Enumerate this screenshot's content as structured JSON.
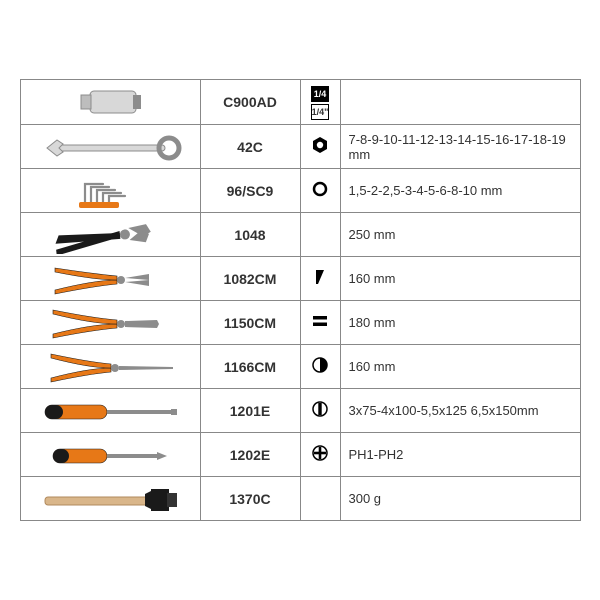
{
  "colors": {
    "border": "#888888",
    "text": "#333333",
    "bg": "#ffffff",
    "orange": "#e77817",
    "black": "#1a1a1a",
    "steel": "#bdbdbd",
    "steel_light": "#d8d8d8",
    "steel_dark": "#8c8c8c",
    "wood": "#d9b68a"
  },
  "rows": [
    {
      "tool": "socket",
      "code": "C900AD",
      "icon_type": "drive",
      "spec": ""
    },
    {
      "tool": "wrench",
      "code": "42C",
      "icon_type": "hexnut",
      "spec": "7-8-9-10-11-12-13-14-15-16-17-18-19 mm"
    },
    {
      "tool": "hexkeys",
      "code": "96/SC9",
      "icon_type": "circle-o",
      "spec": "1,5-2-2,5-3-4-5-6-8-10 mm"
    },
    {
      "tool": "waterpump",
      "code": "1048",
      "icon_type": "",
      "spec": "250 mm"
    },
    {
      "tool": "diagcut",
      "code": "1082CM",
      "icon_type": "diag",
      "spec": "160 mm"
    },
    {
      "tool": "combplier",
      "code": "1150CM",
      "icon_type": "bars",
      "spec": "180 mm"
    },
    {
      "tool": "longnose",
      "code": "1166CM",
      "icon_type": "halfcircle",
      "spec": "160 mm"
    },
    {
      "tool": "flatdriver",
      "code": "1201E",
      "icon_type": "slot",
      "spec": "3x75-4x100-5,5x125 6,5x150mm"
    },
    {
      "tool": "phdriver",
      "code": "1202E",
      "icon_type": "phillips",
      "spec": "PH1-PH2"
    },
    {
      "tool": "hammer",
      "code": "1370C",
      "icon_type": "",
      "spec": "300 g"
    }
  ]
}
